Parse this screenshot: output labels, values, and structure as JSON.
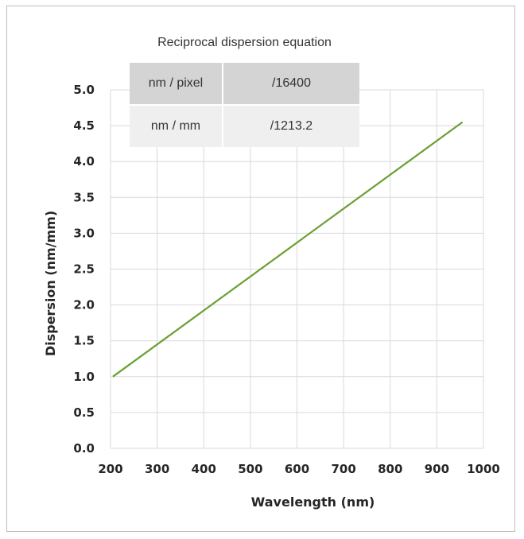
{
  "table": {
    "title": "Reciprocal dispersion equation",
    "rows": [
      {
        "unit": "nm / pixel",
        "value": "/16400"
      },
      {
        "unit": "nm / mm",
        "value": "/1213.2"
      }
    ]
  },
  "chart_data": {
    "type": "line",
    "title": "",
    "xlabel": "Wavelength (nm)",
    "ylabel": "Dispersion (nm/mm)",
    "xlim": [
      200,
      1000
    ],
    "ylim": [
      0.0,
      5.0
    ],
    "x_ticks": [
      "200",
      "300",
      "400",
      "500",
      "600",
      "700",
      "800",
      "900",
      "1000"
    ],
    "y_ticks": [
      "0.0",
      "0.5",
      "1.0",
      "1.5",
      "2.0",
      "2.5",
      "3.0",
      "3.5",
      "4.0",
      "4.5",
      "5.0"
    ],
    "grid": true,
    "line_color": "#6aa033",
    "series": [
      {
        "x": [
          205,
          955
        ],
        "y": [
          1.0,
          4.55
        ]
      }
    ]
  }
}
